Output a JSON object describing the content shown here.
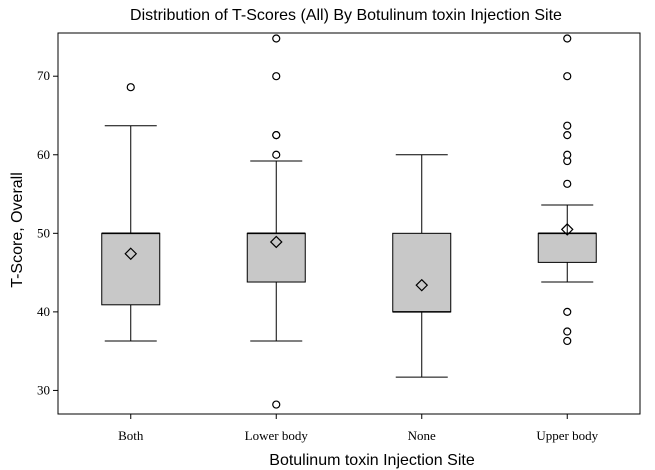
{
  "chart_data": {
    "type": "box",
    "title": "Distribution of T-Scores (All) By Botulinum toxin Injection Site",
    "xlabel": "Botulinum toxin Injection Site",
    "ylabel": "T-Score, Overall",
    "ylim": [
      27,
      75.5
    ],
    "yticks": [
      30,
      40,
      50,
      60,
      70
    ],
    "grid": false,
    "box_fill": "#c8c8c8",
    "categories": [
      "Both",
      "Lower body",
      "None",
      "Upper body"
    ],
    "boxes": [
      {
        "category": "Both",
        "whisker_low": 36.3,
        "q1": 40.9,
        "median": 50.0,
        "q3": 50.0,
        "whisker_high": 63.7,
        "mean": 47.4,
        "outliers": [
          68.6
        ]
      },
      {
        "category": "Lower body",
        "whisker_low": 36.3,
        "q1": 43.8,
        "median": 50.0,
        "q3": 50.0,
        "whisker_high": 59.2,
        "mean": 48.9,
        "outliers": [
          28.2,
          60.0,
          62.5,
          62.5,
          70.0,
          74.8
        ]
      },
      {
        "category": "None",
        "whisker_low": 31.7,
        "q1": 40.0,
        "median": 40.0,
        "q3": 50.0,
        "whisker_high": 60.0,
        "mean": 43.4,
        "outliers": []
      },
      {
        "category": "Upper body",
        "whisker_low": 43.8,
        "q1": 46.3,
        "median": 50.0,
        "q3": 50.0,
        "whisker_high": 53.6,
        "mean": 50.5,
        "outliers": [
          36.3,
          37.5,
          40.0,
          56.3,
          59.2,
          60.0,
          62.5,
          63.7,
          70.0,
          74.8
        ]
      }
    ]
  }
}
